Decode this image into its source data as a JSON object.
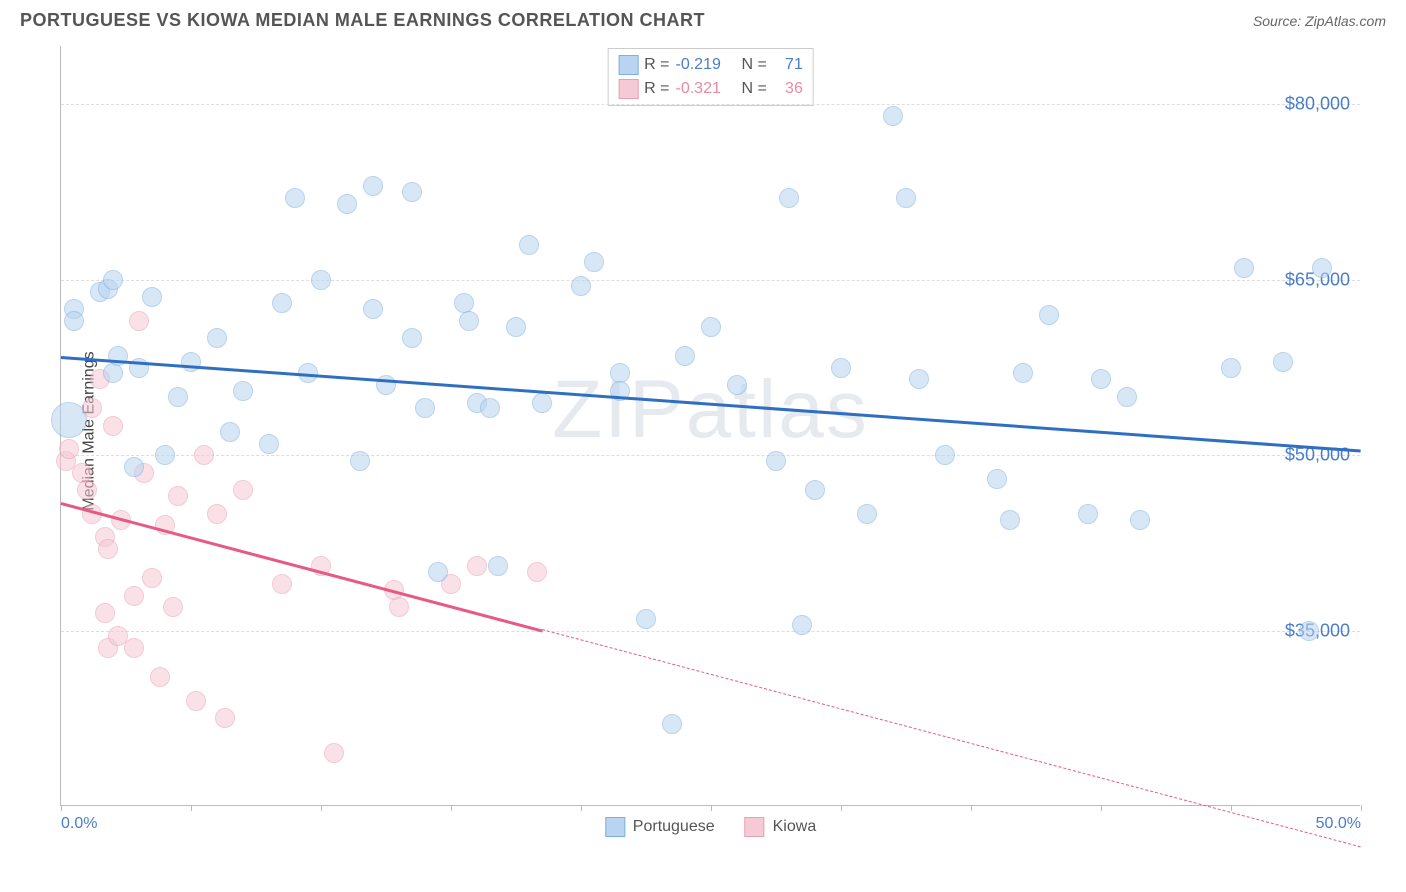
{
  "title": "PORTUGUESE VS KIOWA MEDIAN MALE EARNINGS CORRELATION CHART",
  "source": "Source: ZipAtlas.com",
  "ylabel": "Median Male Earnings",
  "watermark": "ZIPatlas",
  "chart": {
    "type": "scatter",
    "xlim": [
      0,
      50
    ],
    "ylim": [
      20000,
      85000
    ],
    "xtick_positions": [
      0,
      5,
      10,
      15,
      20,
      25,
      30,
      35,
      40,
      45,
      50
    ],
    "xtick_labels": {
      "0": "0.0%",
      "50": "50.0%"
    },
    "ytick_positions": [
      35000,
      50000,
      65000,
      80000
    ],
    "ytick_labels": [
      "$35,000",
      "$50,000",
      "$65,000",
      "$80,000"
    ],
    "background_color": "#ffffff",
    "grid_color": "#dddddd",
    "axis_color": "#bbbbbb",
    "tick_label_color": "#4a7dc9",
    "marker_radius": 10,
    "marker_opacity": 0.55
  },
  "series": {
    "portuguese": {
      "label": "Portuguese",
      "fill_color": "#b8d4f0",
      "stroke_color": "#7fb0e0",
      "trend_color": "#2f6fc2",
      "R": "-0.219",
      "N": "71",
      "trend": {
        "x1": 0,
        "y1": 58500,
        "x2": 50,
        "y2": 50500
      },
      "points": [
        [
          0.3,
          53000,
          18
        ],
        [
          0.5,
          62500
        ],
        [
          0.5,
          61500
        ],
        [
          1.5,
          64000
        ],
        [
          1.8,
          64200
        ],
        [
          2.0,
          65000
        ],
        [
          2.0,
          57000
        ],
        [
          2.2,
          58500
        ],
        [
          2.8,
          49000
        ],
        [
          3.0,
          57500
        ],
        [
          3.5,
          63500
        ],
        [
          4.0,
          50000
        ],
        [
          4.5,
          55000
        ],
        [
          5.0,
          58000
        ],
        [
          6.0,
          60000
        ],
        [
          6.5,
          52000
        ],
        [
          7.0,
          55500
        ],
        [
          8.0,
          51000
        ],
        [
          8.5,
          63000
        ],
        [
          9.0,
          72000
        ],
        [
          9.5,
          57000
        ],
        [
          10.0,
          65000
        ],
        [
          11.0,
          71500
        ],
        [
          11.5,
          49500
        ],
        [
          12.0,
          73000
        ],
        [
          12.0,
          62500
        ],
        [
          12.5,
          56000
        ],
        [
          13.5,
          72500
        ],
        [
          13.5,
          60000
        ],
        [
          14.0,
          54000
        ],
        [
          14.5,
          40000
        ],
        [
          15.5,
          63000
        ],
        [
          15.7,
          61500
        ],
        [
          16.0,
          54500
        ],
        [
          16.5,
          54000
        ],
        [
          16.8,
          40500
        ],
        [
          17.5,
          61000
        ],
        [
          18.0,
          68000
        ],
        [
          18.5,
          54500
        ],
        [
          20.0,
          64500
        ],
        [
          20.5,
          66500
        ],
        [
          21.5,
          57000
        ],
        [
          21.5,
          55500
        ],
        [
          22.5,
          36000
        ],
        [
          23.5,
          27000
        ],
        [
          24.0,
          58500
        ],
        [
          25.0,
          61000
        ],
        [
          26.0,
          56000
        ],
        [
          27.5,
          49500
        ],
        [
          28.0,
          72000
        ],
        [
          28.5,
          35500
        ],
        [
          29.0,
          47000
        ],
        [
          30.0,
          57500
        ],
        [
          31.0,
          45000
        ],
        [
          32.0,
          79000
        ],
        [
          32.5,
          72000
        ],
        [
          33.0,
          56500
        ],
        [
          34.0,
          50000
        ],
        [
          36.0,
          48000
        ],
        [
          36.5,
          44500
        ],
        [
          37.0,
          57000
        ],
        [
          38.0,
          62000
        ],
        [
          39.5,
          45000
        ],
        [
          40.0,
          56500
        ],
        [
          41.0,
          55000
        ],
        [
          41.5,
          44500
        ],
        [
          45.0,
          57500
        ],
        [
          45.5,
          66000
        ],
        [
          47.0,
          58000
        ],
        [
          48.0,
          35000
        ],
        [
          48.5,
          66000
        ]
      ]
    },
    "kiowa": {
      "label": "Kiowa",
      "fill_color": "#f5c9d5",
      "stroke_color": "#e9a0b5",
      "trend_color": "#e65a85",
      "R": "-0.321",
      "N": "36",
      "trend_solid": {
        "x1": 0,
        "y1": 46000,
        "x2": 18.5,
        "y2": 35100
      },
      "trend_dash": {
        "x1": 18.5,
        "y1": 35100,
        "x2": 50,
        "y2": 16500
      },
      "points": [
        [
          0.2,
          49500
        ],
        [
          0.3,
          50500
        ],
        [
          0.8,
          48500
        ],
        [
          1.0,
          47000
        ],
        [
          1.2,
          45000
        ],
        [
          1.2,
          54000
        ],
        [
          1.5,
          56500
        ],
        [
          1.7,
          43000
        ],
        [
          1.7,
          36500
        ],
        [
          1.8,
          42000
        ],
        [
          2.0,
          52500
        ],
        [
          1.8,
          33500
        ],
        [
          2.3,
          44500
        ],
        [
          2.2,
          34500
        ],
        [
          3.0,
          61500
        ],
        [
          2.8,
          38000
        ],
        [
          2.8,
          33500
        ],
        [
          3.2,
          48500
        ],
        [
          3.5,
          39500
        ],
        [
          3.8,
          31000
        ],
        [
          4.0,
          44000
        ],
        [
          4.3,
          37000
        ],
        [
          4.5,
          46500
        ],
        [
          5.2,
          29000
        ],
        [
          5.5,
          50000
        ],
        [
          6.0,
          45000
        ],
        [
          6.3,
          27500
        ],
        [
          7.0,
          47000
        ],
        [
          8.5,
          39000
        ],
        [
          10.0,
          40500
        ],
        [
          10.5,
          24500
        ],
        [
          12.8,
          38500
        ],
        [
          13.0,
          37000
        ],
        [
          15.0,
          39000
        ],
        [
          16.0,
          40500
        ],
        [
          18.3,
          40000
        ]
      ]
    }
  },
  "legend_top": {
    "r_label": "R =",
    "n_label": "N ="
  }
}
